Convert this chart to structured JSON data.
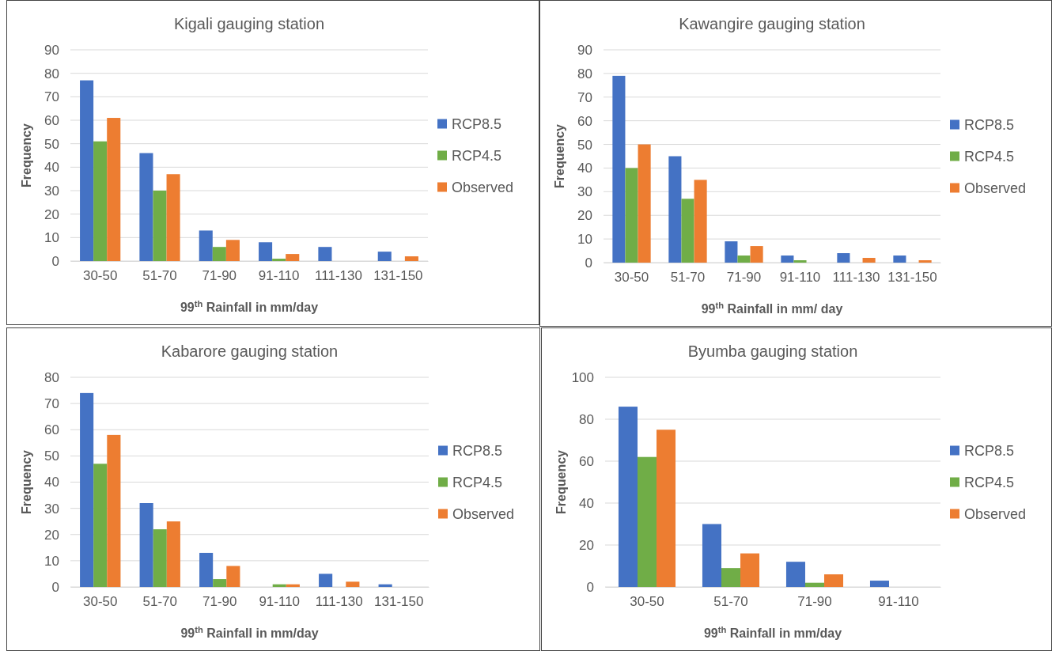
{
  "chart_data": [
    {
      "type": "bar",
      "title": "Kigali gauging station",
      "xlabel": "99$^{th}$ Rainfall in mm/day",
      "ylabel": "Frequency",
      "categories": [
        "30-50",
        "51-70",
        "71-90",
        "91-110",
        "111-130",
        "131-150"
      ],
      "series": [
        {
          "name": "RCP8.5",
          "color": "#4472c4",
          "values": [
            77,
            46,
            13,
            8,
            6,
            4
          ]
        },
        {
          "name": "RCP4.5",
          "color": "#70ad47",
          "values": [
            51,
            30,
            6,
            1,
            0,
            0
          ]
        },
        {
          "name": "Observed",
          "color": "#ed7d31",
          "values": [
            61,
            37,
            9,
            3,
            0,
            2
          ]
        }
      ],
      "ylim": [
        0,
        90
      ],
      "yticks": [
        0,
        10,
        20,
        30,
        40,
        50,
        60,
        70,
        80,
        90
      ],
      "grid": "y",
      "legend": "right"
    },
    {
      "type": "bar",
      "title": "Kawangire gauging station",
      "xlabel": "99$^{th}$ Rainfall in mm/ day",
      "ylabel": "Frequency",
      "categories": [
        "30-50",
        "51-70",
        "71-90",
        "91-110",
        "111-130",
        "131-150"
      ],
      "series": [
        {
          "name": "RCP8.5",
          "color": "#4472c4",
          "values": [
            79,
            45,
            9,
            3,
            4,
            3
          ]
        },
        {
          "name": "RCP4.5",
          "color": "#70ad47",
          "values": [
            40,
            27,
            3,
            1,
            0,
            0
          ]
        },
        {
          "name": "Observed",
          "color": "#ed7d31",
          "values": [
            50,
            35,
            7,
            0,
            2,
            1
          ]
        }
      ],
      "ylim": [
        0,
        90
      ],
      "yticks": [
        0,
        10,
        20,
        30,
        40,
        50,
        60,
        70,
        80,
        90
      ],
      "grid": "y",
      "legend": "right"
    },
    {
      "type": "bar",
      "title": "Kabarore gauging station",
      "xlabel": "99$^{th}$ Rainfall in mm/day",
      "ylabel": "Frequency",
      "categories": [
        "30-50",
        "51-70",
        "71-90",
        "91-110",
        "111-130",
        "131-150"
      ],
      "series": [
        {
          "name": "RCP8.5",
          "color": "#4472c4",
          "values": [
            74,
            32,
            13,
            0,
            5,
            1
          ]
        },
        {
          "name": "RCP4.5",
          "color": "#70ad47",
          "values": [
            47,
            22,
            3,
            1,
            0,
            0
          ]
        },
        {
          "name": "Observed",
          "color": "#ed7d31",
          "values": [
            58,
            25,
            8,
            1,
            2,
            0
          ]
        }
      ],
      "ylim": [
        0,
        80
      ],
      "yticks": [
        0,
        10,
        20,
        30,
        40,
        50,
        60,
        70,
        80
      ],
      "grid": "y",
      "legend": "right"
    },
    {
      "type": "bar",
      "title": "Byumba gauging station",
      "xlabel": "99$^{th}$ Rainfall in mm/day",
      "ylabel": "Frequency",
      "categories": [
        "30-50",
        "51-70",
        "71-90",
        "91-110"
      ],
      "series": [
        {
          "name": "RCP8.5",
          "color": "#4472c4",
          "values": [
            86,
            30,
            12,
            3
          ]
        },
        {
          "name": "RCP4.5",
          "color": "#70ad47",
          "values": [
            62,
            9,
            2,
            0
          ]
        },
        {
          "name": "Observed",
          "color": "#ed7d31",
          "values": [
            75,
            16,
            6,
            0
          ]
        }
      ],
      "ylim": [
        0,
        100
      ],
      "yticks": [
        0,
        20,
        40,
        60,
        80,
        100
      ],
      "grid": "y",
      "legend": "right"
    }
  ]
}
